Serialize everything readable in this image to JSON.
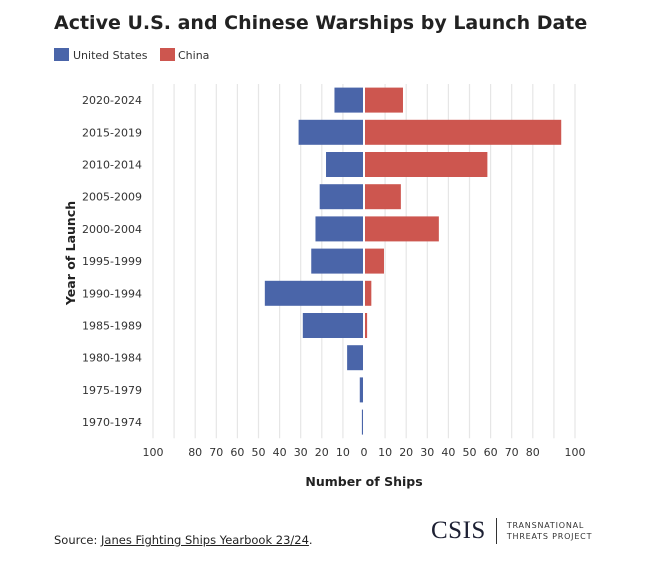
{
  "chart_data": {
    "type": "bar",
    "orientation": "horizontal-diverging",
    "title": "Active U.S. and Chinese Warships by Launch Date",
    "xlabel": "Number of Ships",
    "ylabel": "Year of Launch",
    "categories": [
      "2020-2024",
      "2015-2019",
      "2010-2014",
      "2005-2009",
      "2000-2004",
      "1995-1999",
      "1990-1994",
      "1985-1989",
      "1980-1984",
      "1975-1979",
      "1970-1974"
    ],
    "series": [
      {
        "name": "United States",
        "color": "#4a65a9",
        "side": "left",
        "values": [
          14,
          31,
          18,
          21,
          23,
          25,
          47,
          29,
          8,
          2,
          1
        ]
      },
      {
        "name": "China",
        "color": "#cd564f",
        "side": "right",
        "values": [
          18,
          93,
          58,
          17,
          35,
          9,
          3,
          1,
          0,
          0,
          0
        ]
      }
    ],
    "xlim": [
      -100,
      100
    ],
    "x_tick_labels": [
      "100",
      "80",
      "70",
      "60",
      "50",
      "40",
      "30",
      "20",
      "10",
      "0",
      "10",
      "20",
      "30",
      "40",
      "50",
      "60",
      "70",
      "80",
      "100"
    ],
    "x_tick_values": [
      -100,
      -80,
      -70,
      -60,
      -50,
      -40,
      -30,
      -20,
      -10,
      0,
      10,
      20,
      30,
      40,
      50,
      60,
      70,
      80,
      100
    ],
    "grid": true,
    "legend": "top-left"
  },
  "footer": {
    "source_prefix": "Source: ",
    "source_link": "Janes Fighting Ships Yearbook 23/24",
    "source_suffix": ".",
    "logo_text": "CSIS",
    "logo_sub1": "TRANSNATIONAL",
    "logo_sub2": "THREATS PROJECT"
  }
}
